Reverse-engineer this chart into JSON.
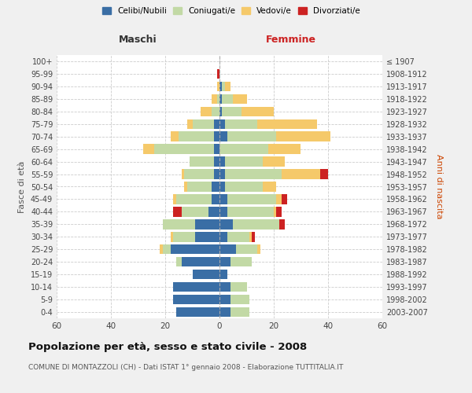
{
  "age_groups": [
    "0-4",
    "5-9",
    "10-14",
    "15-19",
    "20-24",
    "25-29",
    "30-34",
    "35-39",
    "40-44",
    "45-49",
    "50-54",
    "55-59",
    "60-64",
    "65-69",
    "70-74",
    "75-79",
    "80-84",
    "85-89",
    "90-94",
    "95-99",
    "100+"
  ],
  "birth_years": [
    "2003-2007",
    "1998-2002",
    "1993-1997",
    "1988-1992",
    "1983-1987",
    "1978-1982",
    "1973-1977",
    "1968-1972",
    "1963-1967",
    "1958-1962",
    "1953-1957",
    "1948-1952",
    "1943-1947",
    "1938-1942",
    "1933-1937",
    "1928-1932",
    "1923-1927",
    "1918-1922",
    "1913-1917",
    "1908-1912",
    "≤ 1907"
  ],
  "maschi_celibe": [
    16,
    17,
    17,
    10,
    14,
    18,
    9,
    9,
    4,
    3,
    3,
    2,
    2,
    2,
    2,
    2,
    0,
    0,
    0,
    0,
    0
  ],
  "maschi_coniugato": [
    0,
    0,
    0,
    0,
    2,
    3,
    8,
    12,
    10,
    13,
    9,
    11,
    9,
    22,
    13,
    8,
    3,
    1,
    0,
    0,
    0
  ],
  "maschi_vedovo": [
    0,
    0,
    0,
    0,
    0,
    1,
    1,
    0,
    0,
    1,
    1,
    1,
    0,
    4,
    3,
    2,
    4,
    2,
    1,
    0,
    0
  ],
  "maschi_divorziato": [
    0,
    0,
    0,
    0,
    0,
    0,
    0,
    0,
    3,
    0,
    0,
    0,
    0,
    0,
    0,
    0,
    0,
    0,
    0,
    1,
    0
  ],
  "femmine_celibe": [
    4,
    4,
    4,
    3,
    4,
    6,
    3,
    5,
    3,
    3,
    2,
    2,
    2,
    0,
    3,
    2,
    1,
    1,
    1,
    0,
    0
  ],
  "femmine_coniugato": [
    7,
    7,
    6,
    0,
    8,
    8,
    8,
    17,
    17,
    18,
    14,
    21,
    14,
    18,
    18,
    12,
    7,
    4,
    1,
    0,
    0
  ],
  "femmine_vedovo": [
    0,
    0,
    0,
    0,
    0,
    1,
    1,
    0,
    1,
    2,
    5,
    14,
    8,
    12,
    20,
    22,
    12,
    5,
    2,
    0,
    0
  ],
  "femmine_divorziato": [
    0,
    0,
    0,
    0,
    0,
    0,
    1,
    2,
    2,
    2,
    0,
    3,
    0,
    0,
    0,
    0,
    0,
    0,
    0,
    0,
    0
  ],
  "colors": {
    "celibe": "#3a6ea5",
    "coniugato": "#c2d9a5",
    "vedovo": "#f5c96a",
    "divorziato": "#cc2222"
  },
  "xlim": 60,
  "title": "Popolazione per età, sesso e stato civile - 2008",
  "subtitle": "COMUNE DI MONTAZZOLI (CH) - Dati ISTAT 1° gennaio 2008 - Elaborazione TUTTITALIA.IT",
  "ylabel_left": "Fasce di età",
  "ylabel_right": "Anni di nascita",
  "xlabel_maschi": "Maschi",
  "xlabel_femmine": "Femmine",
  "bg_color": "#f0f0f0",
  "plot_bg": "#ffffff",
  "legend_labels": [
    "Celibi/Nubili",
    "Coniugati/e",
    "Vedovi/e",
    "Divorziati/e"
  ]
}
